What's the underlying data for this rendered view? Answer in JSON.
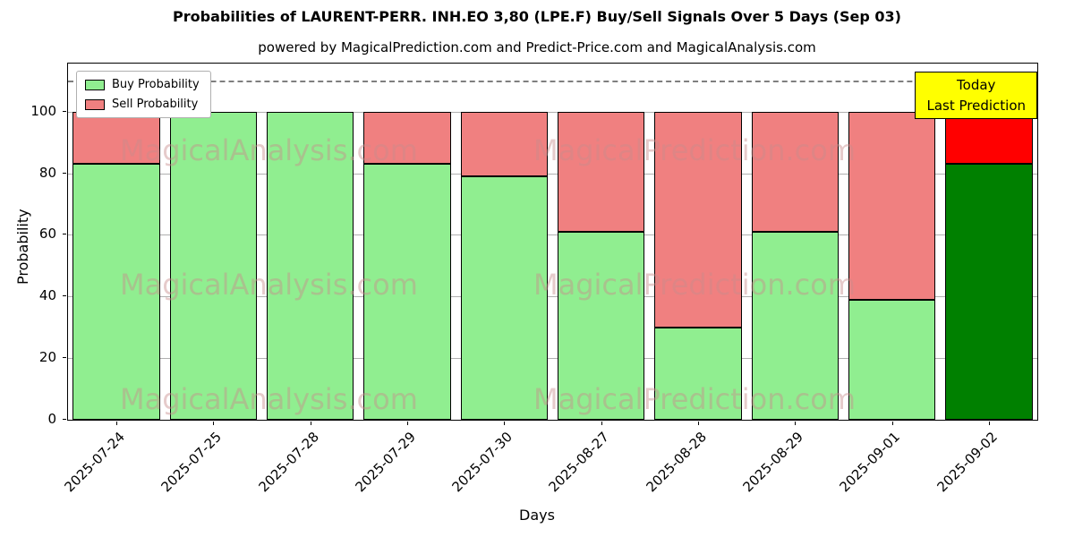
{
  "chart_data": {
    "type": "bar",
    "stacked": true,
    "title": "Probabilities of LAURENT-PERR. INH.EO 3,80 (LPE.F) Buy/Sell Signals Over 5 Days (Sep 03)",
    "subtitle": "powered by MagicalPrediction.com and Predict-Price.com and MagicalAnalysis.com",
    "xlabel": "Days",
    "ylabel": "Probability",
    "categories": [
      "2025-07-24",
      "2025-07-25",
      "2025-07-28",
      "2025-07-29",
      "2025-07-30",
      "2025-08-27",
      "2025-08-28",
      "2025-08-29",
      "2025-09-01",
      "2025-09-02"
    ],
    "series": [
      {
        "name": "Buy Probability",
        "color": "#90ee90",
        "values": [
          83,
          100,
          100,
          83,
          79,
          61,
          30,
          61,
          39,
          83
        ]
      },
      {
        "name": "Sell Probability",
        "color": "#f08080",
        "values": [
          17,
          0,
          0,
          17,
          21,
          39,
          70,
          39,
          61,
          17
        ]
      }
    ],
    "today_bar": {
      "index": 9,
      "category": "2025-09-02",
      "buy_color": "#008000",
      "sell_color": "#ff0000"
    },
    "yticks": [
      0,
      20,
      40,
      60,
      80,
      100
    ],
    "ylim": [
      0,
      115.6
    ],
    "dashed_line_y": 110,
    "grid": true,
    "legend_position": "upper-left",
    "annotation": {
      "lines": [
        "Today",
        "Last Prediction"
      ],
      "bg_color": "#ffff00"
    },
    "watermarks": {
      "texts": [
        "MagicalAnalysis.com",
        "MagicalPrediction.com"
      ],
      "color": "rgba(200,140,140,0.45)"
    }
  }
}
